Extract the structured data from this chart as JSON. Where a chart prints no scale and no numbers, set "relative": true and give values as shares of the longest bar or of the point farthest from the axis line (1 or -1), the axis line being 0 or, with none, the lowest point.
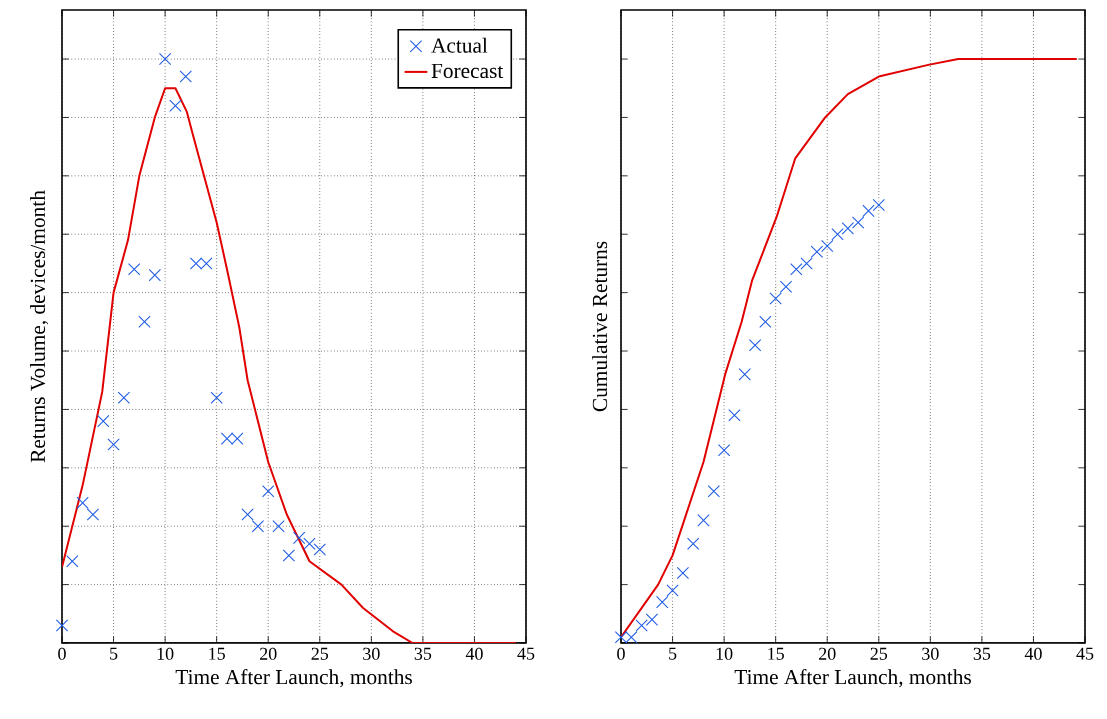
{
  "chart_data": [
    {
      "type": "line",
      "relative": true,
      "xlabel": "Time After Launch, months",
      "ylabel": "Returns Volume, devices/month",
      "xlim": [
        0,
        45
      ],
      "xticks": [
        0,
        5,
        10,
        15,
        20,
        25,
        30,
        35,
        40,
        45
      ],
      "grid": true,
      "legend": "top right",
      "tick_labels": "x",
      "series": [
        {
          "name": "Actual",
          "type": "scatter",
          "marker": "cross",
          "color": "#1f5ce6",
          "x": [
            0,
            1,
            2,
            3,
            4,
            5,
            6,
            7,
            8,
            9,
            10,
            11,
            12,
            13,
            14,
            15,
            16,
            17,
            18,
            19,
            20,
            21,
            22,
            23,
            24,
            25
          ],
          "values": [
            0.03,
            0.14,
            0.24,
            0.22,
            0.38,
            0.34,
            0.42,
            0.64,
            0.55,
            0.63,
            1.0,
            0.92,
            0.97,
            0.65,
            0.65,
            0.42,
            0.35,
            0.35,
            0.22,
            0.2,
            0.26,
            0.2,
            0.15,
            0.18,
            0.17,
            0.16
          ]
        },
        {
          "name": "Forecast",
          "color": "#e00000",
          "x": [
            0,
            2,
            3.9,
            5,
            6.4,
            7.5,
            9,
            10,
            11,
            12.1,
            12.7,
            15,
            16,
            17.2,
            18,
            20,
            21.8,
            24,
            27.1,
            29.2,
            32.1,
            34,
            44
          ],
          "values": [
            0.13,
            0.27,
            0.43,
            0.6,
            0.69,
            0.8,
            0.9,
            0.95,
            0.95,
            0.91,
            0.87,
            0.72,
            0.64,
            0.54,
            0.45,
            0.31,
            0.22,
            0.14,
            0.1,
            0.06,
            0.02,
            0,
            0
          ]
        }
      ]
    },
    {
      "type": "line",
      "relative": true,
      "xlabel": "Time After Launch, months",
      "ylabel": "Cumulative Returns",
      "xlim": [
        0,
        45
      ],
      "xticks": [
        0,
        5,
        10,
        15,
        20,
        25,
        30,
        35,
        40,
        45
      ],
      "grid": "x",
      "tick_labels": "x",
      "series": [
        {
          "type": "scatter",
          "marker": "cross",
          "color": "#1f5ce6",
          "x": [
            0,
            1,
            2,
            3,
            4,
            5,
            6,
            7,
            8,
            9,
            10,
            11,
            12,
            13,
            14,
            15,
            16,
            17,
            18,
            19,
            20,
            21,
            22,
            23,
            24,
            25
          ],
          "values": [
            0.01,
            0.01,
            0.03,
            0.04,
            0.07,
            0.09,
            0.12,
            0.17,
            0.21,
            0.26,
            0.33,
            0.39,
            0.46,
            0.51,
            0.55,
            0.59,
            0.61,
            0.64,
            0.65,
            0.67,
            0.68,
            0.7,
            0.71,
            0.72,
            0.74,
            0.75
          ]
        },
        {
          "color": "#e00000",
          "x": [
            0,
            3.6,
            5,
            8,
            10.1,
            11.7,
            12.7,
            15.1,
            16.9,
            19.8,
            22,
            25,
            29.8,
            32.7,
            44.2
          ],
          "values": [
            0.01,
            0.1,
            0.15,
            0.31,
            0.46,
            0.55,
            0.62,
            0.73,
            0.83,
            0.9,
            0.94,
            0.97,
            0.99,
            1.0,
            1.0
          ]
        }
      ]
    }
  ]
}
